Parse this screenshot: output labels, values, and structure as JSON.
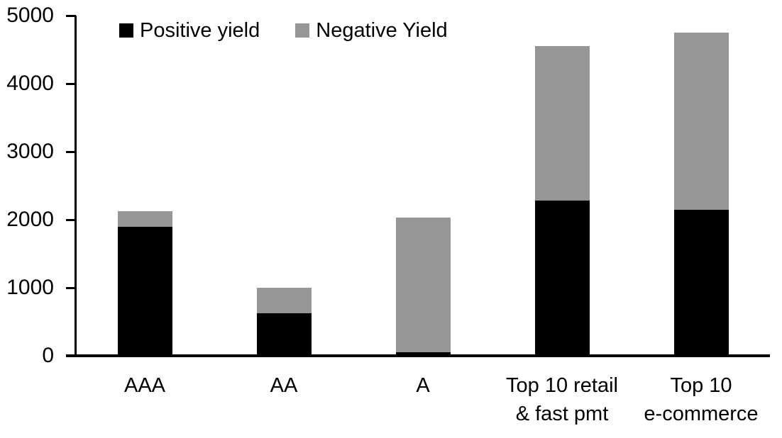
{
  "chart_data": {
    "type": "bar",
    "subtype": "stacked-vertical",
    "title": "",
    "xlabel": "",
    "ylabel": "",
    "categories": [
      "AAA",
      "AA",
      "A",
      "Top 10 retail & fast pmt",
      "Top 10 e-commerce"
    ],
    "category_lines": [
      [
        "AAA"
      ],
      [
        "AA"
      ],
      [
        "A"
      ],
      [
        "Top 10 retail",
        "& fast pmt"
      ],
      [
        "Top 10",
        "e-commerce"
      ]
    ],
    "series": [
      {
        "name": "Positive yield",
        "color": "#000000",
        "values": [
          1900,
          630,
          50,
          2280,
          2150
        ]
      },
      {
        "name": "Negative Yield",
        "color": "#969696",
        "values": [
          220,
          370,
          1980,
          2270,
          2600
        ]
      }
    ],
    "totals": [
      2120,
      1000,
      2030,
      4550,
      4750
    ],
    "ylim": [
      0,
      5000
    ],
    "yticks": [
      "0",
      "1000",
      "2000",
      "3000",
      "4000",
      "5000"
    ],
    "grid": "off",
    "legend_position": "top-inside",
    "axis_color": "#000000",
    "background_color": "#ffffff"
  }
}
